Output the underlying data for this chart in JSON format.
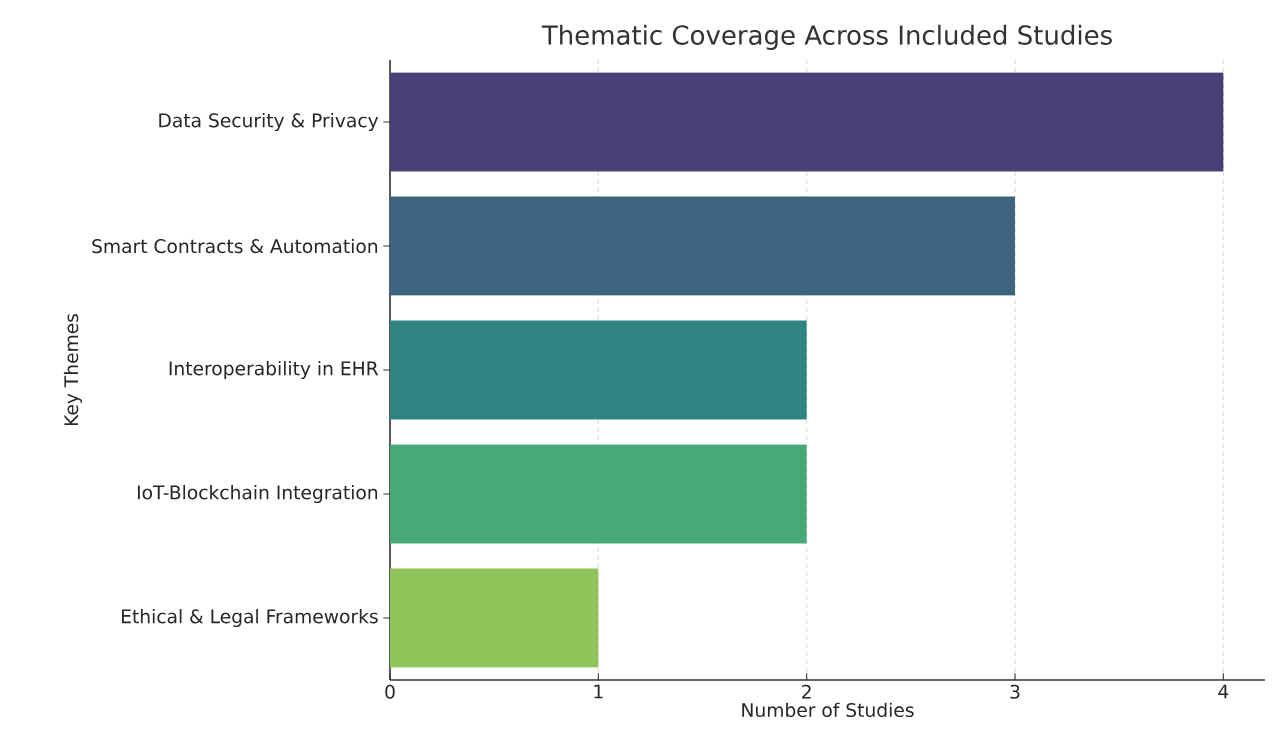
{
  "chart_data": {
    "type": "bar",
    "orientation": "horizontal",
    "title": "Thematic Coverage Across Included Studies",
    "xlabel": "Number of Studies",
    "ylabel": "Key Themes",
    "categories": [
      "Data Security & Privacy",
      "Smart Contracts & Automation",
      "Interoperability in EHR",
      "IoT-Blockchain Integration",
      "Ethical & Legal Frameworks"
    ],
    "values": [
      4,
      3,
      2,
      2,
      1
    ],
    "colors": [
      "#4b3f78",
      "#3e657f",
      "#2e8480",
      "#48a878",
      "#8fc45a"
    ],
    "xlim": [
      0,
      4.2
    ],
    "xticks": [
      0,
      1,
      2,
      3,
      4
    ],
    "grid": "x"
  }
}
